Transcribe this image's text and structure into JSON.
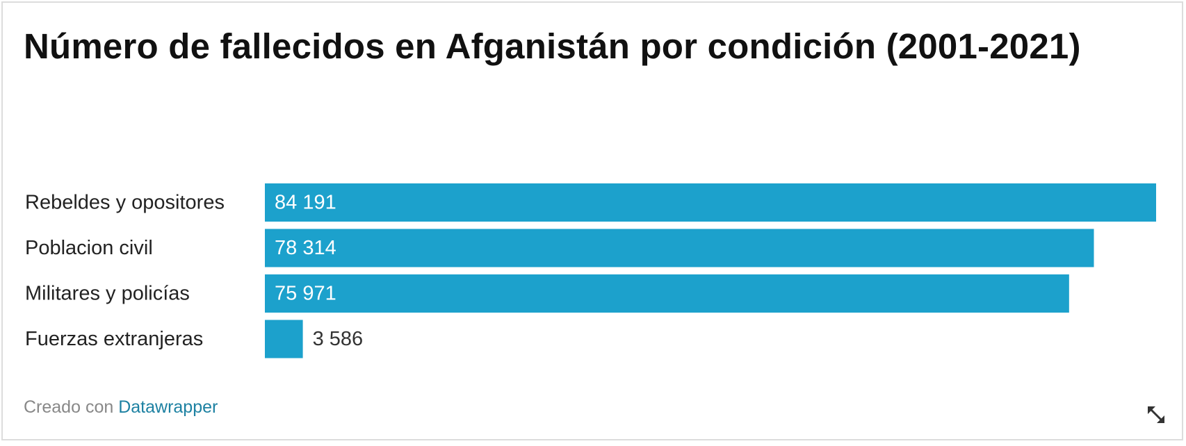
{
  "title": "Número de fallecidos en Afganistán por condición (2001-2021)",
  "footer": {
    "prefix": "Creado con",
    "link_label": "Datawrapper"
  },
  "colors": {
    "bar": "#1ca1cc",
    "label_inside": "#ffffff",
    "label_outside": "#333333",
    "category_text": "#222222"
  },
  "icons": {
    "expand": "diagonal-resize-arrows-icon"
  },
  "chart_data": {
    "type": "bar",
    "orientation": "horizontal",
    "categories": [
      "Rebeldes y opositores",
      "Poblacion civil",
      "Militares y policías",
      "Fuerzas extranjeras"
    ],
    "values": [
      84191,
      78314,
      75971,
      3586
    ],
    "value_labels": [
      "84 191",
      "78 314",
      "75 971",
      "3 586"
    ],
    "xlim": [
      0,
      84191
    ],
    "grid": false,
    "legend": "none"
  }
}
